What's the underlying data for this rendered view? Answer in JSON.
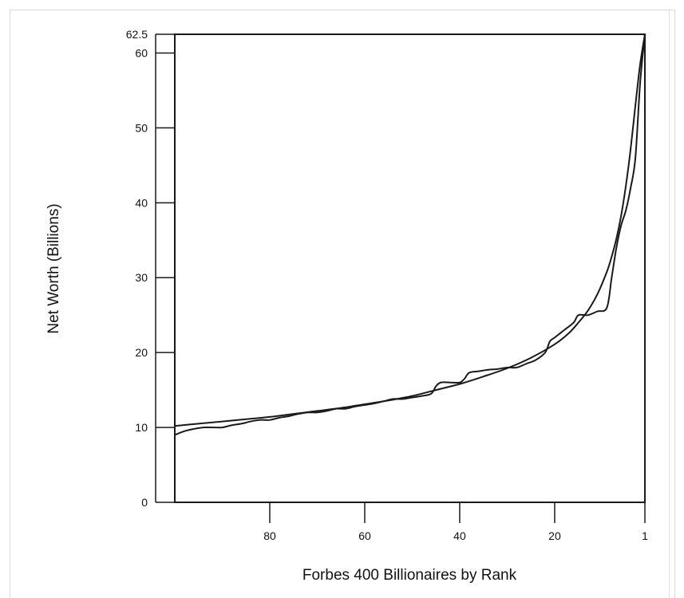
{
  "chart_data": {
    "type": "line",
    "title": "",
    "xlabel": "Forbes 400 Billionaires by Rank",
    "ylabel": "Net Worth (Billions)",
    "xlim": [
      100,
      1
    ],
    "ylim": [
      0,
      62.5
    ],
    "x_ticks": [
      80,
      60,
      40,
      20,
      1
    ],
    "x_tick_labels": [
      "80",
      "60",
      "40",
      "20",
      "1"
    ],
    "y_ticks": [
      0,
      10,
      20,
      30,
      40,
      50,
      60,
      62.5
    ],
    "y_tick_labels": [
      "0",
      "10",
      "20",
      "30",
      "40",
      "50",
      "60",
      "62.5"
    ],
    "grid": false,
    "legend": "none",
    "series": [
      {
        "kind": "observed",
        "color": "#1a1a1a",
        "points": [
          [
            100,
            9.0
          ],
          [
            98,
            9.5
          ],
          [
            96,
            9.8
          ],
          [
            94,
            10.0
          ],
          [
            92,
            10.0
          ],
          [
            90,
            10.0
          ],
          [
            88,
            10.3
          ],
          [
            86,
            10.5
          ],
          [
            84,
            10.8
          ],
          [
            82,
            11.0
          ],
          [
            80,
            11.0
          ],
          [
            78,
            11.3
          ],
          [
            76,
            11.5
          ],
          [
            74,
            11.8
          ],
          [
            72,
            12.0
          ],
          [
            70,
            12.0
          ],
          [
            68,
            12.2
          ],
          [
            66,
            12.5
          ],
          [
            64,
            12.5
          ],
          [
            62,
            12.8
          ],
          [
            60,
            13.0
          ],
          [
            58,
            13.2
          ],
          [
            56,
            13.5
          ],
          [
            54,
            13.8
          ],
          [
            52,
            13.8
          ],
          [
            50,
            14.0
          ],
          [
            48,
            14.2
          ],
          [
            46,
            14.5
          ],
          [
            45,
            15.5
          ],
          [
            44,
            16.0
          ],
          [
            42,
            16.0
          ],
          [
            40,
            16.0
          ],
          [
            39,
            16.5
          ],
          [
            38,
            17.3
          ],
          [
            36,
            17.5
          ],
          [
            34,
            17.7
          ],
          [
            32,
            17.8
          ],
          [
            30,
            18.0
          ],
          [
            28,
            18.0
          ],
          [
            26,
            18.5
          ],
          [
            24,
            19.0
          ],
          [
            22,
            20.0
          ],
          [
            21,
            21.5
          ],
          [
            20,
            22.0
          ],
          [
            18,
            23.0
          ],
          [
            16,
            24.0
          ],
          [
            15,
            25.0
          ],
          [
            13,
            25.0
          ],
          [
            11,
            25.5
          ],
          [
            9,
            26.0
          ],
          [
            8,
            30.0
          ],
          [
            7,
            34.0
          ],
          [
            6,
            37.0
          ],
          [
            5,
            39.0
          ],
          [
            4,
            42.0
          ],
          [
            3,
            46.0
          ],
          [
            2,
            56.0
          ],
          [
            1,
            62.5
          ]
        ]
      },
      {
        "kind": "fitted",
        "color": "#1a1a1a",
        "points": [
          [
            100,
            10.2
          ],
          [
            95,
            10.5
          ],
          [
            90,
            10.8
          ],
          [
            85,
            11.1
          ],
          [
            80,
            11.4
          ],
          [
            75,
            11.8
          ],
          [
            70,
            12.2
          ],
          [
            65,
            12.6
          ],
          [
            60,
            13.1
          ],
          [
            55,
            13.6
          ],
          [
            50,
            14.2
          ],
          [
            45,
            15.0
          ],
          [
            40,
            15.8
          ],
          [
            35,
            16.8
          ],
          [
            30,
            17.9
          ],
          [
            25,
            19.3
          ],
          [
            20,
            21.1
          ],
          [
            17,
            22.6
          ],
          [
            15,
            24.0
          ],
          [
            13,
            25.6
          ],
          [
            11,
            27.8
          ],
          [
            9,
            30.8
          ],
          [
            8,
            32.8
          ],
          [
            7,
            35.2
          ],
          [
            6,
            38.3
          ],
          [
            5,
            42.3
          ],
          [
            4,
            47.2
          ],
          [
            3,
            53.0
          ],
          [
            2,
            58.5
          ],
          [
            1,
            62.5
          ]
        ]
      }
    ]
  }
}
